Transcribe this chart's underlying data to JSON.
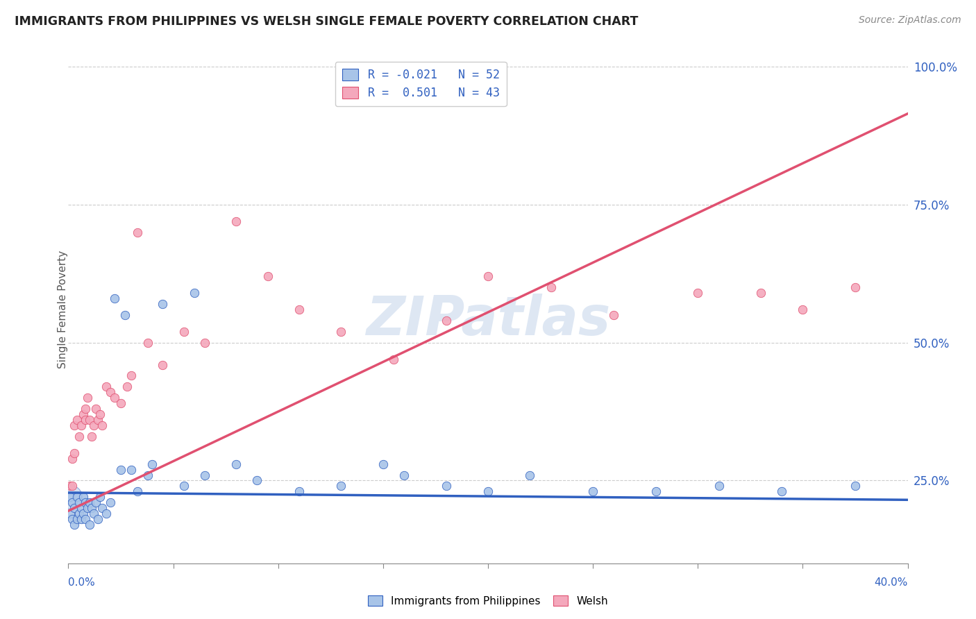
{
  "title": "IMMIGRANTS FROM PHILIPPINES VS WELSH SINGLE FEMALE POVERTY CORRELATION CHART",
  "source_text": "Source: ZipAtlas.com",
  "ylabel": "Single Female Poverty",
  "right_yticks": [
    "100.0%",
    "75.0%",
    "50.0%",
    "25.0%"
  ],
  "right_ytick_vals": [
    1.0,
    0.75,
    0.5,
    0.25
  ],
  "watermark": "ZIPatlas",
  "legend_blue_r": "-0.021",
  "legend_blue_n": "52",
  "legend_pink_r": "0.501",
  "legend_pink_n": "43",
  "blue_color": "#a8c4e8",
  "pink_color": "#f4a8bc",
  "blue_line_color": "#3060c0",
  "pink_line_color": "#e05070",
  "xlim": [
    0.0,
    0.4
  ],
  "ylim": [
    0.1,
    1.02
  ],
  "blue_trend_x": [
    0.0,
    0.4
  ],
  "blue_trend_y": [
    0.228,
    0.215
  ],
  "pink_trend_x": [
    0.0,
    0.4
  ],
  "pink_trend_y": [
    0.195,
    0.915
  ],
  "blue_points_x": [
    0.001,
    0.001,
    0.002,
    0.002,
    0.003,
    0.003,
    0.004,
    0.004,
    0.005,
    0.005,
    0.006,
    0.006,
    0.007,
    0.007,
    0.008,
    0.008,
    0.009,
    0.01,
    0.01,
    0.011,
    0.012,
    0.013,
    0.014,
    0.015,
    0.016,
    0.018,
    0.02,
    0.022,
    0.025,
    0.027,
    0.03,
    0.033,
    0.038,
    0.04,
    0.045,
    0.055,
    0.06,
    0.065,
    0.08,
    0.09,
    0.11,
    0.13,
    0.15,
    0.16,
    0.18,
    0.2,
    0.22,
    0.25,
    0.28,
    0.31,
    0.34,
    0.375
  ],
  "blue_points_y": [
    0.22,
    0.19,
    0.21,
    0.18,
    0.2,
    0.17,
    0.22,
    0.18,
    0.21,
    0.19,
    0.2,
    0.18,
    0.22,
    0.19,
    0.21,
    0.18,
    0.2,
    0.21,
    0.17,
    0.2,
    0.19,
    0.21,
    0.18,
    0.22,
    0.2,
    0.19,
    0.21,
    0.58,
    0.27,
    0.55,
    0.27,
    0.23,
    0.26,
    0.28,
    0.57,
    0.24,
    0.59,
    0.26,
    0.28,
    0.25,
    0.23,
    0.24,
    0.28,
    0.26,
    0.24,
    0.23,
    0.26,
    0.23,
    0.23,
    0.24,
    0.23,
    0.24
  ],
  "pink_points_x": [
    0.001,
    0.002,
    0.002,
    0.003,
    0.003,
    0.004,
    0.005,
    0.006,
    0.007,
    0.008,
    0.008,
    0.009,
    0.01,
    0.011,
    0.012,
    0.013,
    0.014,
    0.015,
    0.016,
    0.018,
    0.02,
    0.022,
    0.025,
    0.028,
    0.03,
    0.033,
    0.038,
    0.045,
    0.055,
    0.065,
    0.08,
    0.095,
    0.11,
    0.13,
    0.155,
    0.18,
    0.2,
    0.23,
    0.26,
    0.3,
    0.33,
    0.35,
    0.375
  ],
  "pink_points_y": [
    0.24,
    0.24,
    0.29,
    0.3,
    0.35,
    0.36,
    0.33,
    0.35,
    0.37,
    0.36,
    0.38,
    0.4,
    0.36,
    0.33,
    0.35,
    0.38,
    0.36,
    0.37,
    0.35,
    0.42,
    0.41,
    0.4,
    0.39,
    0.42,
    0.44,
    0.7,
    0.5,
    0.46,
    0.52,
    0.5,
    0.72,
    0.62,
    0.56,
    0.52,
    0.47,
    0.54,
    0.62,
    0.6,
    0.55,
    0.59,
    0.59,
    0.56,
    0.6
  ]
}
